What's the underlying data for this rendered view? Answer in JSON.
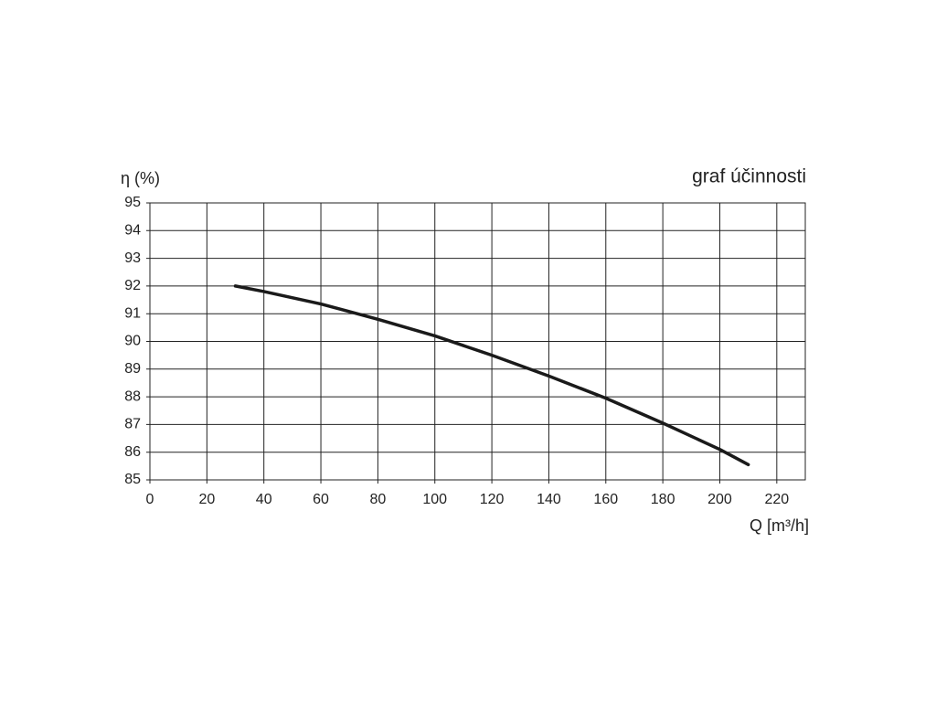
{
  "chart_data": {
    "type": "line",
    "title": "graf účinnosti",
    "y_label": "η (%)",
    "x_label": "Q [m³/h]",
    "x": [
      30,
      40,
      60,
      80,
      100,
      120,
      140,
      160,
      180,
      200,
      210
    ],
    "series": [
      {
        "color": "#1a1a1a",
        "values": [
          92,
          91.8,
          91.35,
          90.8,
          90.2,
          89.5,
          88.75,
          87.95,
          87.05,
          86.1,
          85.55
        ]
      }
    ],
    "xlim": [
      0,
      230
    ],
    "xticks": [
      0,
      20,
      40,
      60,
      80,
      100,
      120,
      140,
      160,
      180,
      200,
      220
    ],
    "ylim": [
      85,
      95
    ],
    "yticks": [
      85,
      86,
      87,
      88,
      89,
      90,
      91,
      92,
      93,
      94,
      95
    ],
    "grid": true
  }
}
